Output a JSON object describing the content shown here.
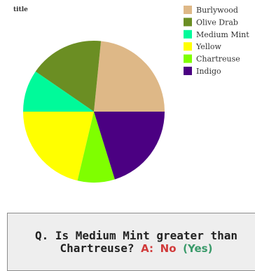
{
  "chart_data": {
    "type": "pie",
    "title": "title",
    "legend_position": "top-right",
    "slices": [
      {
        "label": "Burlywood",
        "value": 22,
        "color": "#deb887"
      },
      {
        "label": "Olive Drab",
        "value": 16,
        "color": "#6b8e23"
      },
      {
        "label": "Medium Mint",
        "value": 9,
        "color": "#00fa9a"
      },
      {
        "label": "Yellow",
        "value": 20,
        "color": "#ffff00"
      },
      {
        "label": "Chartreuse",
        "value": 8,
        "color": "#7fff00"
      },
      {
        "label": "Indigo",
        "value": 19,
        "color": "#4b0082"
      }
    ]
  },
  "qa": {
    "question": "Q. Is Medium Mint greater than Chartreuse?",
    "answer_label": "A:",
    "answer": "No",
    "correct": "(Yes)"
  }
}
